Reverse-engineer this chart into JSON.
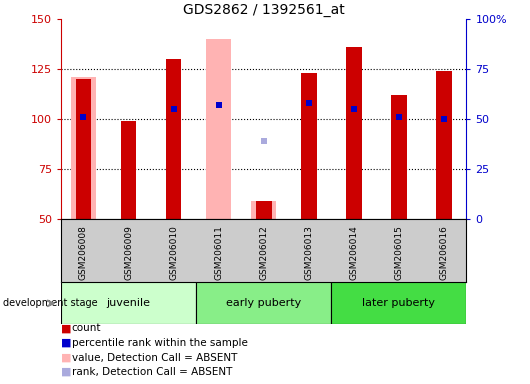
{
  "title": "GDS2862 / 1392561_at",
  "samples": [
    "GSM206008",
    "GSM206009",
    "GSM206010",
    "GSM206011",
    "GSM206012",
    "GSM206013",
    "GSM206014",
    "GSM206015",
    "GSM206016"
  ],
  "red_bars": [
    120,
    99,
    130,
    null,
    59,
    123,
    136,
    112,
    124
  ],
  "pink_bars": [
    121,
    null,
    null,
    140,
    59,
    null,
    null,
    null,
    null
  ],
  "blue_squares": [
    101,
    null,
    105,
    107,
    null,
    108,
    105,
    101,
    100
  ],
  "lightblue_squares": [
    null,
    null,
    null,
    null,
    89,
    null,
    null,
    null,
    null
  ],
  "ylim_left": [
    50,
    150
  ],
  "ylim_right": [
    0,
    100
  ],
  "yticks_left": [
    50,
    75,
    100,
    125,
    150
  ],
  "yticks_right": [
    0,
    25,
    50,
    75,
    100
  ],
  "groups": [
    {
      "label": "juvenile",
      "indices": [
        0,
        1,
        2
      ],
      "color": "#ccffcc"
    },
    {
      "label": "early puberty",
      "indices": [
        3,
        4,
        5
      ],
      "color": "#88ee88"
    },
    {
      "label": "later puberty",
      "indices": [
        6,
        7,
        8
      ],
      "color": "#44dd44"
    }
  ],
  "bar_width": 0.35,
  "pink_bar_width": 0.55,
  "red_color": "#cc0000",
  "pink_color": "#ffb3b3",
  "blue_color": "#0000cc",
  "lightblue_color": "#aaaadd",
  "bg_color": "#cccccc",
  "plot_bg": "#ffffff",
  "left_tick_color": "#cc0000",
  "right_tick_color": "#0000cc",
  "grid_vals": [
    75,
    100,
    125
  ],
  "legend": [
    {
      "color": "#cc0000",
      "label": "count"
    },
    {
      "color": "#0000cc",
      "label": "percentile rank within the sample"
    },
    {
      "color": "#ffb3b3",
      "label": "value, Detection Call = ABSENT"
    },
    {
      "color": "#aaaadd",
      "label": "rank, Detection Call = ABSENT"
    }
  ]
}
